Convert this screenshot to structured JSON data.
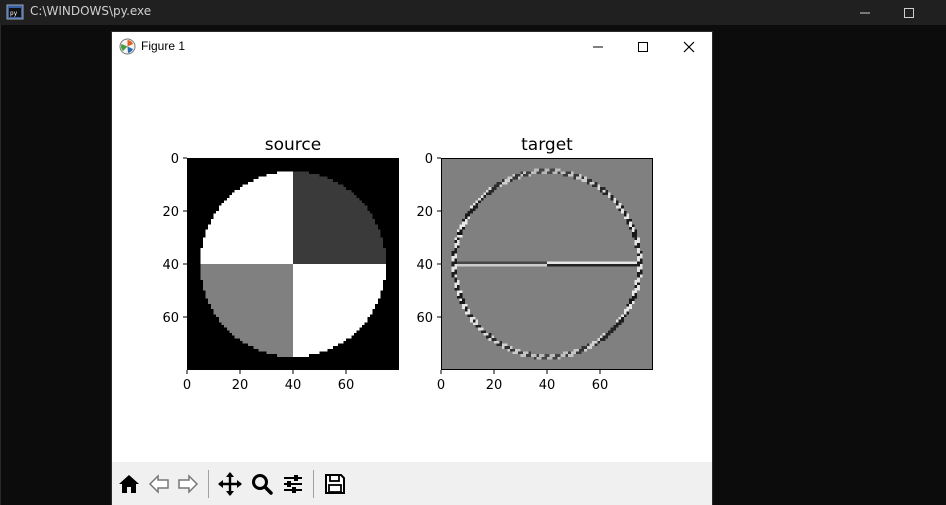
{
  "console": {
    "title": "C:\\WINDOWS\\py.exe"
  },
  "figure": {
    "title": "Figure 1"
  },
  "toolbar": {
    "buttons": [
      "home",
      "back",
      "forward",
      "pan",
      "zoom",
      "configure-subplots",
      "save"
    ]
  },
  "chart_data": [
    {
      "type": "heatmap",
      "title": "source",
      "xlim": [
        0,
        80
      ],
      "ylim": [
        80,
        0
      ],
      "xticks": [
        0,
        20,
        40,
        60
      ],
      "yticks": [
        0,
        20,
        40,
        60
      ],
      "xtick_labels": [
        "0",
        "20",
        "40",
        "60"
      ],
      "ytick_labels": [
        "0",
        "20",
        "40",
        "60"
      ],
      "image_size": [
        80,
        80
      ],
      "content": {
        "background": "#000000",
        "circle_center": [
          40,
          40
        ],
        "circle_radius": 35,
        "quadrant_colors": {
          "top_left": "#ffffff",
          "top_right": "#3a3a3a",
          "bottom_left": "#808080",
          "bottom_right": "#ffffff"
        }
      }
    },
    {
      "type": "heatmap",
      "title": "target",
      "xlim": [
        0,
        80
      ],
      "ylim": [
        80,
        0
      ],
      "xticks": [
        0,
        20,
        40,
        60
      ],
      "yticks": [
        0,
        20,
        40,
        60
      ],
      "xtick_labels": [
        "0",
        "20",
        "40",
        "60"
      ],
      "ytick_labels": [
        "0",
        "20",
        "40",
        "60"
      ],
      "image_size": [
        80,
        80
      ],
      "content": {
        "background": "#808080",
        "circle_center": [
          40,
          40
        ],
        "circle_radius": 35,
        "horizontal_edge_y": 40
      }
    }
  ]
}
